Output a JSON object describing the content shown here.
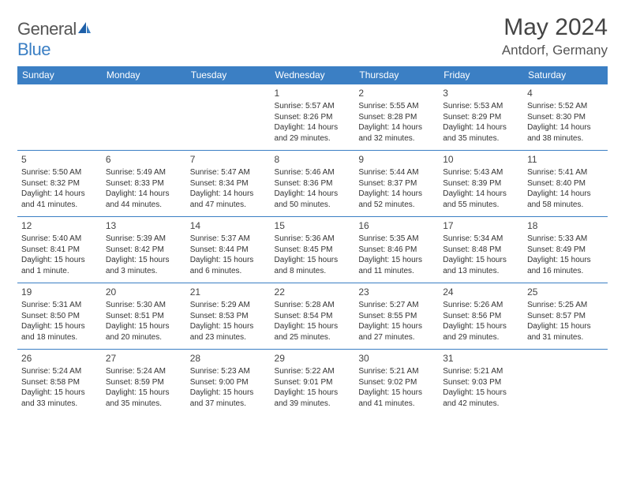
{
  "brand": {
    "part1": "General",
    "part2": "Blue"
  },
  "title": "May 2024",
  "location": "Antdorf, Germany",
  "colors": {
    "accent": "#3b7fc4",
    "header_text": "#ffffff",
    "body_text": "#333333",
    "muted_text": "#555555",
    "cell_border": "#3b7fc4",
    "background": "#ffffff"
  },
  "typography": {
    "title_fontsize_pt": 22,
    "location_fontsize_pt": 13,
    "dayheader_fontsize_pt": 9,
    "cell_fontsize_pt": 7.5
  },
  "layout": {
    "columns": 7,
    "rows": 5
  },
  "day_headers": [
    "Sunday",
    "Monday",
    "Tuesday",
    "Wednesday",
    "Thursday",
    "Friday",
    "Saturday"
  ],
  "weeks": [
    [
      null,
      null,
      null,
      {
        "n": "1",
        "sr": "Sunrise: 5:57 AM",
        "ss": "Sunset: 8:26 PM",
        "d1": "Daylight: 14 hours",
        "d2": "and 29 minutes."
      },
      {
        "n": "2",
        "sr": "Sunrise: 5:55 AM",
        "ss": "Sunset: 8:28 PM",
        "d1": "Daylight: 14 hours",
        "d2": "and 32 minutes."
      },
      {
        "n": "3",
        "sr": "Sunrise: 5:53 AM",
        "ss": "Sunset: 8:29 PM",
        "d1": "Daylight: 14 hours",
        "d2": "and 35 minutes."
      },
      {
        "n": "4",
        "sr": "Sunrise: 5:52 AM",
        "ss": "Sunset: 8:30 PM",
        "d1": "Daylight: 14 hours",
        "d2": "and 38 minutes."
      }
    ],
    [
      {
        "n": "5",
        "sr": "Sunrise: 5:50 AM",
        "ss": "Sunset: 8:32 PM",
        "d1": "Daylight: 14 hours",
        "d2": "and 41 minutes."
      },
      {
        "n": "6",
        "sr": "Sunrise: 5:49 AM",
        "ss": "Sunset: 8:33 PM",
        "d1": "Daylight: 14 hours",
        "d2": "and 44 minutes."
      },
      {
        "n": "7",
        "sr": "Sunrise: 5:47 AM",
        "ss": "Sunset: 8:34 PM",
        "d1": "Daylight: 14 hours",
        "d2": "and 47 minutes."
      },
      {
        "n": "8",
        "sr": "Sunrise: 5:46 AM",
        "ss": "Sunset: 8:36 PM",
        "d1": "Daylight: 14 hours",
        "d2": "and 50 minutes."
      },
      {
        "n": "9",
        "sr": "Sunrise: 5:44 AM",
        "ss": "Sunset: 8:37 PM",
        "d1": "Daylight: 14 hours",
        "d2": "and 52 minutes."
      },
      {
        "n": "10",
        "sr": "Sunrise: 5:43 AM",
        "ss": "Sunset: 8:39 PM",
        "d1": "Daylight: 14 hours",
        "d2": "and 55 minutes."
      },
      {
        "n": "11",
        "sr": "Sunrise: 5:41 AM",
        "ss": "Sunset: 8:40 PM",
        "d1": "Daylight: 14 hours",
        "d2": "and 58 minutes."
      }
    ],
    [
      {
        "n": "12",
        "sr": "Sunrise: 5:40 AM",
        "ss": "Sunset: 8:41 PM",
        "d1": "Daylight: 15 hours",
        "d2": "and 1 minute."
      },
      {
        "n": "13",
        "sr": "Sunrise: 5:39 AM",
        "ss": "Sunset: 8:42 PM",
        "d1": "Daylight: 15 hours",
        "d2": "and 3 minutes."
      },
      {
        "n": "14",
        "sr": "Sunrise: 5:37 AM",
        "ss": "Sunset: 8:44 PM",
        "d1": "Daylight: 15 hours",
        "d2": "and 6 minutes."
      },
      {
        "n": "15",
        "sr": "Sunrise: 5:36 AM",
        "ss": "Sunset: 8:45 PM",
        "d1": "Daylight: 15 hours",
        "d2": "and 8 minutes."
      },
      {
        "n": "16",
        "sr": "Sunrise: 5:35 AM",
        "ss": "Sunset: 8:46 PM",
        "d1": "Daylight: 15 hours",
        "d2": "and 11 minutes."
      },
      {
        "n": "17",
        "sr": "Sunrise: 5:34 AM",
        "ss": "Sunset: 8:48 PM",
        "d1": "Daylight: 15 hours",
        "d2": "and 13 minutes."
      },
      {
        "n": "18",
        "sr": "Sunrise: 5:33 AM",
        "ss": "Sunset: 8:49 PM",
        "d1": "Daylight: 15 hours",
        "d2": "and 16 minutes."
      }
    ],
    [
      {
        "n": "19",
        "sr": "Sunrise: 5:31 AM",
        "ss": "Sunset: 8:50 PM",
        "d1": "Daylight: 15 hours",
        "d2": "and 18 minutes."
      },
      {
        "n": "20",
        "sr": "Sunrise: 5:30 AM",
        "ss": "Sunset: 8:51 PM",
        "d1": "Daylight: 15 hours",
        "d2": "and 20 minutes."
      },
      {
        "n": "21",
        "sr": "Sunrise: 5:29 AM",
        "ss": "Sunset: 8:53 PM",
        "d1": "Daylight: 15 hours",
        "d2": "and 23 minutes."
      },
      {
        "n": "22",
        "sr": "Sunrise: 5:28 AM",
        "ss": "Sunset: 8:54 PM",
        "d1": "Daylight: 15 hours",
        "d2": "and 25 minutes."
      },
      {
        "n": "23",
        "sr": "Sunrise: 5:27 AM",
        "ss": "Sunset: 8:55 PM",
        "d1": "Daylight: 15 hours",
        "d2": "and 27 minutes."
      },
      {
        "n": "24",
        "sr": "Sunrise: 5:26 AM",
        "ss": "Sunset: 8:56 PM",
        "d1": "Daylight: 15 hours",
        "d2": "and 29 minutes."
      },
      {
        "n": "25",
        "sr": "Sunrise: 5:25 AM",
        "ss": "Sunset: 8:57 PM",
        "d1": "Daylight: 15 hours",
        "d2": "and 31 minutes."
      }
    ],
    [
      {
        "n": "26",
        "sr": "Sunrise: 5:24 AM",
        "ss": "Sunset: 8:58 PM",
        "d1": "Daylight: 15 hours",
        "d2": "and 33 minutes."
      },
      {
        "n": "27",
        "sr": "Sunrise: 5:24 AM",
        "ss": "Sunset: 8:59 PM",
        "d1": "Daylight: 15 hours",
        "d2": "and 35 minutes."
      },
      {
        "n": "28",
        "sr": "Sunrise: 5:23 AM",
        "ss": "Sunset: 9:00 PM",
        "d1": "Daylight: 15 hours",
        "d2": "and 37 minutes."
      },
      {
        "n": "29",
        "sr": "Sunrise: 5:22 AM",
        "ss": "Sunset: 9:01 PM",
        "d1": "Daylight: 15 hours",
        "d2": "and 39 minutes."
      },
      {
        "n": "30",
        "sr": "Sunrise: 5:21 AM",
        "ss": "Sunset: 9:02 PM",
        "d1": "Daylight: 15 hours",
        "d2": "and 41 minutes."
      },
      {
        "n": "31",
        "sr": "Sunrise: 5:21 AM",
        "ss": "Sunset: 9:03 PM",
        "d1": "Daylight: 15 hours",
        "d2": "and 42 minutes."
      },
      null
    ]
  ]
}
